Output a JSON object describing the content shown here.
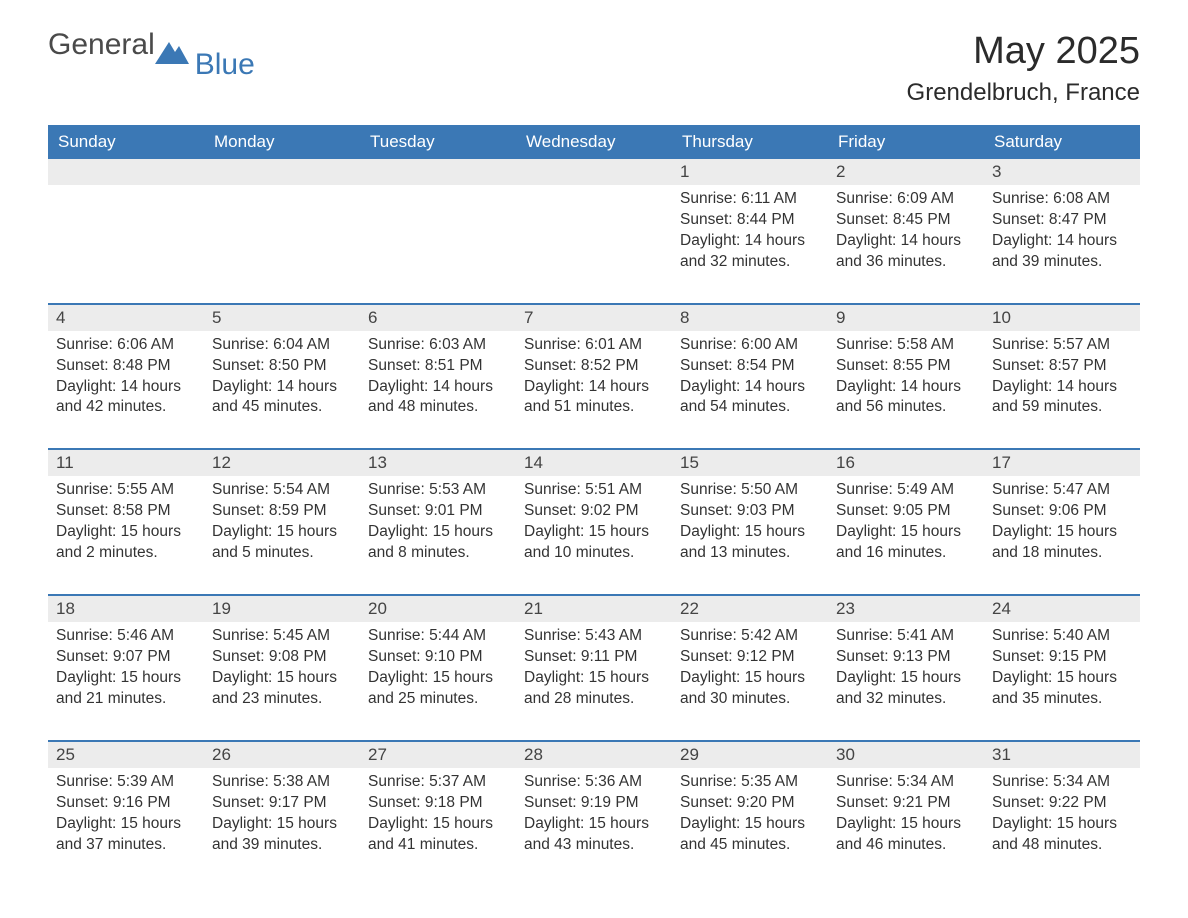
{
  "logo": {
    "word1": "General",
    "word2": "Blue",
    "mark_color": "#3b78b5",
    "text_gray": "#4a4a4a"
  },
  "header": {
    "title": "May 2025",
    "location": "Grendelbruch, France"
  },
  "colors": {
    "header_bg": "#3b78b5",
    "header_text": "#ffffff",
    "row_divider": "#3b78b5",
    "daynum_bg": "#ececec",
    "body_text": "#333333",
    "page_bg": "#ffffff"
  },
  "typography": {
    "title_fontsize": 38,
    "location_fontsize": 24,
    "weekday_fontsize": 17,
    "daynum_fontsize": 17,
    "info_fontsize": 15.5,
    "logo_fontsize": 30
  },
  "layout": {
    "columns": 7,
    "blank_leading_cells": 4
  },
  "weekdays": [
    "Sunday",
    "Monday",
    "Tuesday",
    "Wednesday",
    "Thursday",
    "Friday",
    "Saturday"
  ],
  "days": [
    {
      "n": 1,
      "sunrise": "6:11 AM",
      "sunset": "8:44 PM",
      "daylight": "14 hours and 32 minutes."
    },
    {
      "n": 2,
      "sunrise": "6:09 AM",
      "sunset": "8:45 PM",
      "daylight": "14 hours and 36 minutes."
    },
    {
      "n": 3,
      "sunrise": "6:08 AM",
      "sunset": "8:47 PM",
      "daylight": "14 hours and 39 minutes."
    },
    {
      "n": 4,
      "sunrise": "6:06 AM",
      "sunset": "8:48 PM",
      "daylight": "14 hours and 42 minutes."
    },
    {
      "n": 5,
      "sunrise": "6:04 AM",
      "sunset": "8:50 PM",
      "daylight": "14 hours and 45 minutes."
    },
    {
      "n": 6,
      "sunrise": "6:03 AM",
      "sunset": "8:51 PM",
      "daylight": "14 hours and 48 minutes."
    },
    {
      "n": 7,
      "sunrise": "6:01 AM",
      "sunset": "8:52 PM",
      "daylight": "14 hours and 51 minutes."
    },
    {
      "n": 8,
      "sunrise": "6:00 AM",
      "sunset": "8:54 PM",
      "daylight": "14 hours and 54 minutes."
    },
    {
      "n": 9,
      "sunrise": "5:58 AM",
      "sunset": "8:55 PM",
      "daylight": "14 hours and 56 minutes."
    },
    {
      "n": 10,
      "sunrise": "5:57 AM",
      "sunset": "8:57 PM",
      "daylight": "14 hours and 59 minutes."
    },
    {
      "n": 11,
      "sunrise": "5:55 AM",
      "sunset": "8:58 PM",
      "daylight": "15 hours and 2 minutes."
    },
    {
      "n": 12,
      "sunrise": "5:54 AM",
      "sunset": "8:59 PM",
      "daylight": "15 hours and 5 minutes."
    },
    {
      "n": 13,
      "sunrise": "5:53 AM",
      "sunset": "9:01 PM",
      "daylight": "15 hours and 8 minutes."
    },
    {
      "n": 14,
      "sunrise": "5:51 AM",
      "sunset": "9:02 PM",
      "daylight": "15 hours and 10 minutes."
    },
    {
      "n": 15,
      "sunrise": "5:50 AM",
      "sunset": "9:03 PM",
      "daylight": "15 hours and 13 minutes."
    },
    {
      "n": 16,
      "sunrise": "5:49 AM",
      "sunset": "9:05 PM",
      "daylight": "15 hours and 16 minutes."
    },
    {
      "n": 17,
      "sunrise": "5:47 AM",
      "sunset": "9:06 PM",
      "daylight": "15 hours and 18 minutes."
    },
    {
      "n": 18,
      "sunrise": "5:46 AM",
      "sunset": "9:07 PM",
      "daylight": "15 hours and 21 minutes."
    },
    {
      "n": 19,
      "sunrise": "5:45 AM",
      "sunset": "9:08 PM",
      "daylight": "15 hours and 23 minutes."
    },
    {
      "n": 20,
      "sunrise": "5:44 AM",
      "sunset": "9:10 PM",
      "daylight": "15 hours and 25 minutes."
    },
    {
      "n": 21,
      "sunrise": "5:43 AM",
      "sunset": "9:11 PM",
      "daylight": "15 hours and 28 minutes."
    },
    {
      "n": 22,
      "sunrise": "5:42 AM",
      "sunset": "9:12 PM",
      "daylight": "15 hours and 30 minutes."
    },
    {
      "n": 23,
      "sunrise": "5:41 AM",
      "sunset": "9:13 PM",
      "daylight": "15 hours and 32 minutes."
    },
    {
      "n": 24,
      "sunrise": "5:40 AM",
      "sunset": "9:15 PM",
      "daylight": "15 hours and 35 minutes."
    },
    {
      "n": 25,
      "sunrise": "5:39 AM",
      "sunset": "9:16 PM",
      "daylight": "15 hours and 37 minutes."
    },
    {
      "n": 26,
      "sunrise": "5:38 AM",
      "sunset": "9:17 PM",
      "daylight": "15 hours and 39 minutes."
    },
    {
      "n": 27,
      "sunrise": "5:37 AM",
      "sunset": "9:18 PM",
      "daylight": "15 hours and 41 minutes."
    },
    {
      "n": 28,
      "sunrise": "5:36 AM",
      "sunset": "9:19 PM",
      "daylight": "15 hours and 43 minutes."
    },
    {
      "n": 29,
      "sunrise": "5:35 AM",
      "sunset": "9:20 PM",
      "daylight": "15 hours and 45 minutes."
    },
    {
      "n": 30,
      "sunrise": "5:34 AM",
      "sunset": "9:21 PM",
      "daylight": "15 hours and 46 minutes."
    },
    {
      "n": 31,
      "sunrise": "5:34 AM",
      "sunset": "9:22 PM",
      "daylight": "15 hours and 48 minutes."
    }
  ],
  "labels": {
    "sunrise_prefix": "Sunrise: ",
    "sunset_prefix": "Sunset: ",
    "daylight_prefix": "Daylight: "
  }
}
